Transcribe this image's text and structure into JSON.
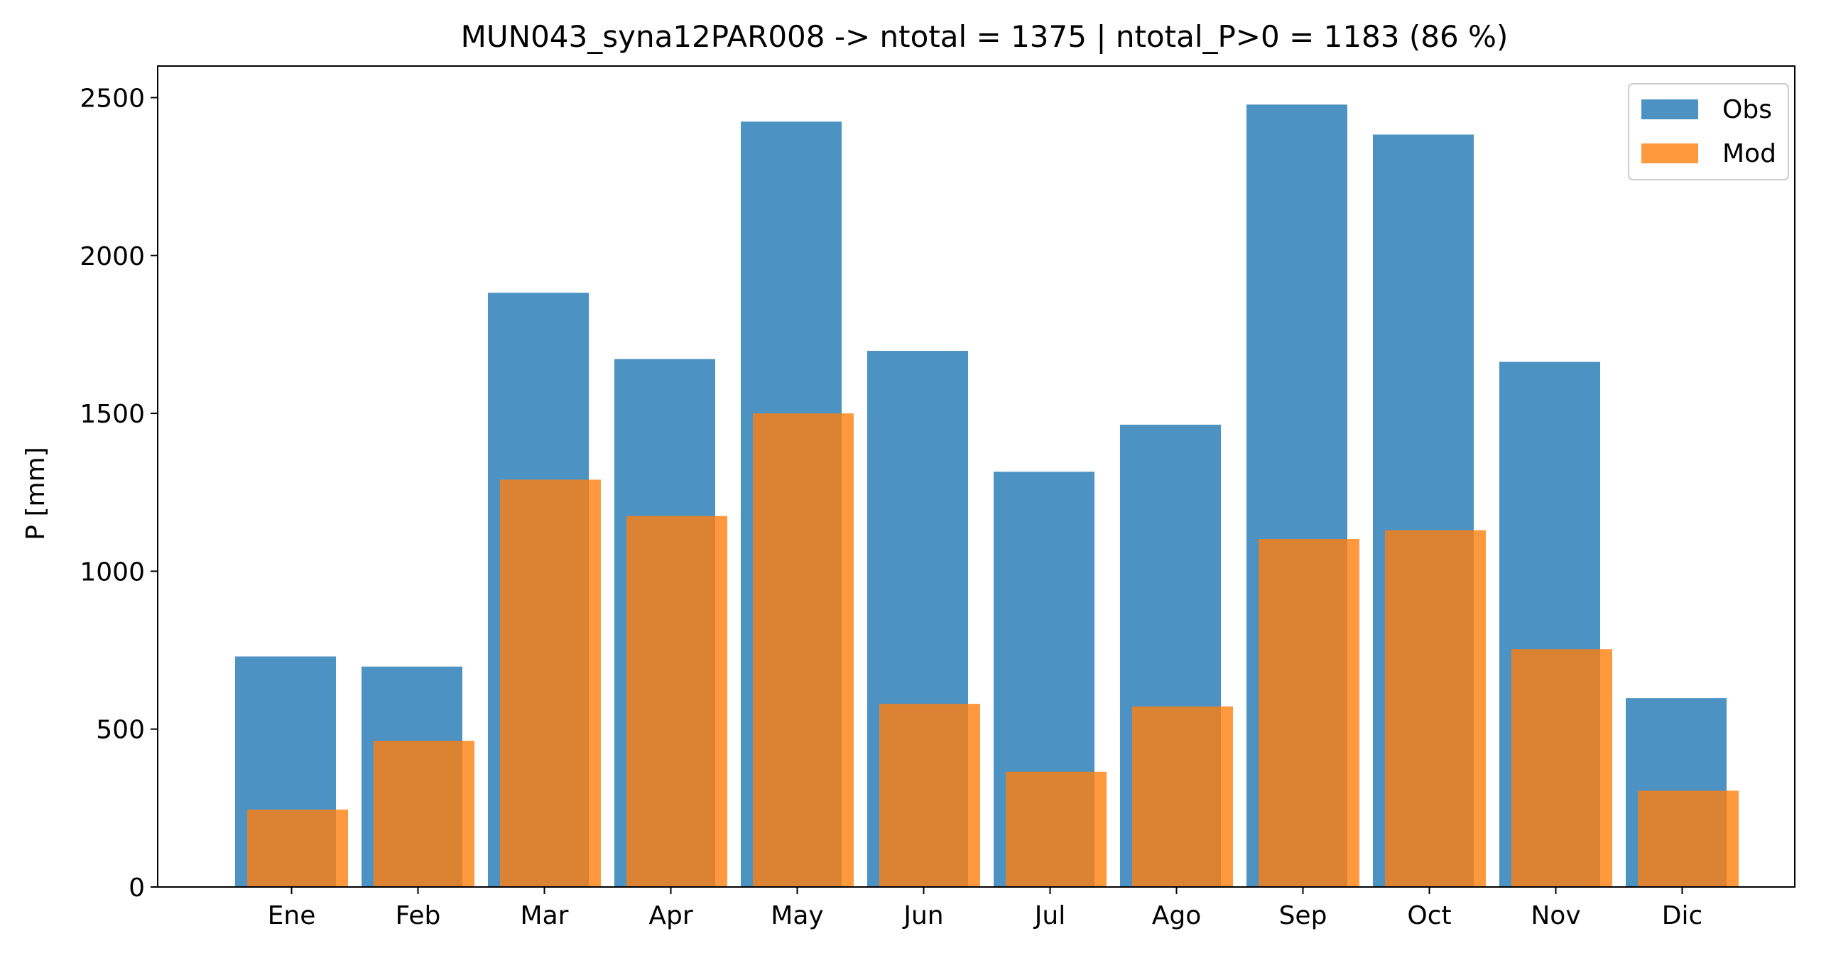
{
  "chart_data": {
    "type": "bar",
    "title": "MUN043_syna12PAR008 -> ntotal = 1375 | ntotal_P>0 = 1183 (86 %)",
    "xlabel": "",
    "ylabel": "P [mm]",
    "categories": [
      "Ene",
      "Feb",
      "Mar",
      "Apr",
      "May",
      "Jun",
      "Jul",
      "Ago",
      "Sep",
      "Oct",
      "Nov",
      "Dic"
    ],
    "series": [
      {
        "name": "Obs",
        "color": "#1f77b4",
        "values": [
          730,
          698,
          1882,
          1672,
          2424,
          1698,
          1315,
          1464,
          2478,
          2383,
          1663,
          598
        ]
      },
      {
        "name": "Mod",
        "color": "#ff7f0e",
        "values": [
          245,
          463,
          1290,
          1175,
          1500,
          580,
          365,
          572,
          1102,
          1130,
          753,
          305
        ]
      }
    ],
    "ylim": [
      0,
      2500
    ],
    "yticks": [
      0,
      500,
      1000,
      1500,
      2000,
      2500
    ],
    "legend_position": "top-right",
    "grid": false
  }
}
